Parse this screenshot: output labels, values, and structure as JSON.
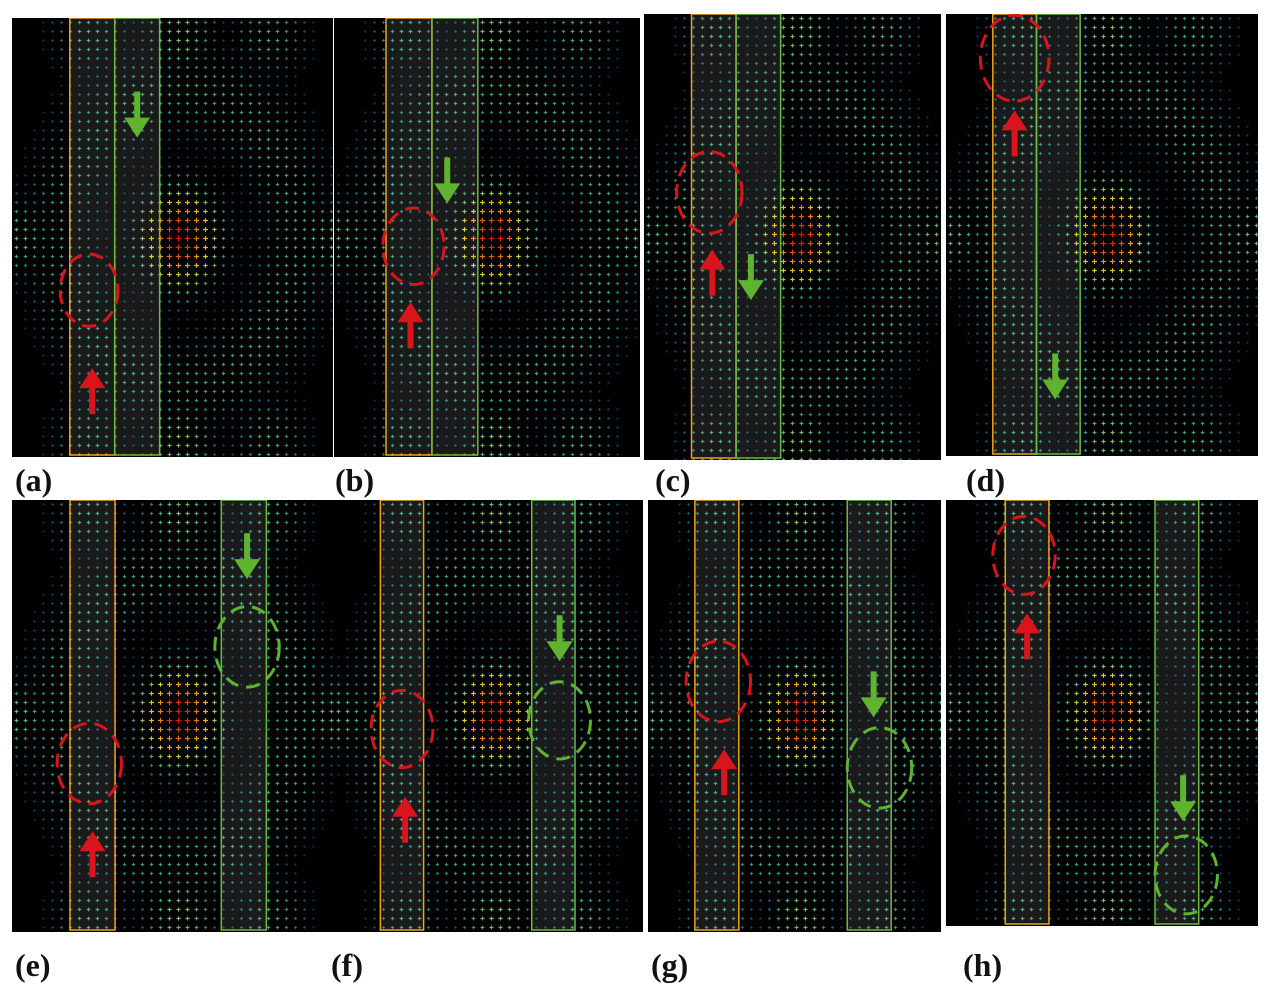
{
  "figure": {
    "panels": [
      {
        "id": "a",
        "label": "(a)",
        "row": 0,
        "col": 0
      },
      {
        "id": "b",
        "label": "(b)",
        "row": 0,
        "col": 1
      },
      {
        "id": "c",
        "label": "(c)",
        "row": 0,
        "col": 2
      },
      {
        "id": "d",
        "label": "(d)",
        "row": 0,
        "col": 3
      },
      {
        "id": "e",
        "label": "(e)",
        "row": 1,
        "col": 0
      },
      {
        "id": "f",
        "label": "(f)",
        "row": 1,
        "col": 1
      },
      {
        "id": "g",
        "label": "(g)",
        "row": 1,
        "col": 2
      },
      {
        "id": "h",
        "label": "(h)",
        "row": 1,
        "col": 3
      }
    ],
    "colors": {
      "background": "#000000",
      "arrow_red": "#d8141c",
      "arrow_green": "#5fb32f",
      "strip_orange": "#f0a21e",
      "strip_green": "#6dbb3f",
      "core_red": "#e01010"
    }
  }
}
